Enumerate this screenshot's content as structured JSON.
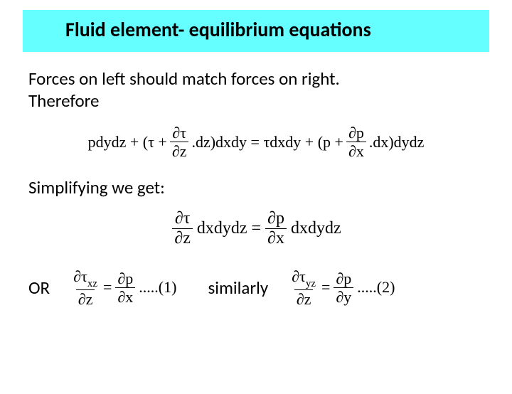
{
  "title": "Fluid element- equilibrium equations",
  "intro_line1": "Forces on left should match forces on right.",
  "intro_line2": "Therefore",
  "simplify": "Simplifying we get:",
  "or": "OR",
  "similarly": "similarly",
  "eq1": {
    "t1": "pdydz + (τ +",
    "f1n": "∂τ",
    "f1d": "∂z",
    "t2": ".dz)dxdy = τdxdy + (p +",
    "f2n": "∂p",
    "f2d": "∂x",
    "t3": ".dx)dydz"
  },
  "eq2": {
    "f1n": "∂τ",
    "f1d": "∂z",
    "mid": "dxdydz =",
    "f2n": "∂p",
    "f2d": "∂x",
    "end": "dxdydz"
  },
  "eq3": {
    "f1n_a": "∂τ",
    "f1n_sub": "xz",
    "f1d": "∂z",
    "eq": "=",
    "f2n": "∂p",
    "f2d": "∂x",
    "tail": ".....(1)"
  },
  "eq4": {
    "f1n_a": "∂τ",
    "f1n_sub": "yz",
    "f1d": "∂z",
    "eq": "=",
    "f2n": "∂p",
    "f2d": "∂y",
    "tail": ".....(2)"
  },
  "colors": {
    "title_bg": "#66ffff",
    "page_bg": "#ffffff",
    "text": "#000000"
  }
}
